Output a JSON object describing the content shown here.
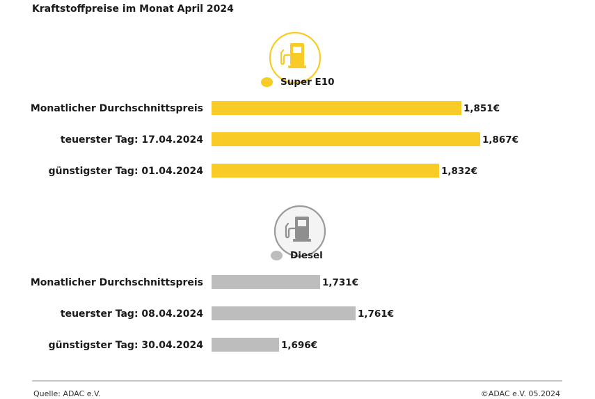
{
  "title": "Kraftstoffpreise im Monat April 2024",
  "chart_data": [
    {
      "type": "bar",
      "orientation": "horizontal",
      "series_name": "Super E10",
      "color": "#f9cb26",
      "icon": "fuel-pump-icon",
      "categories": [
        "Monatlicher Durchschnittspreis",
        "teuerster Tag: 17.04.2024",
        "günstigster Tag: 01.04.2024"
      ],
      "values": [
        1.851,
        1.867,
        1.832
      ],
      "value_labels": [
        "1,851€",
        "1,867€",
        "1,832€"
      ]
    },
    {
      "type": "bar",
      "orientation": "horizontal",
      "series_name": "Diesel",
      "color": "#bdbdbd",
      "icon": "fuel-pump-icon",
      "categories": [
        "Monatlicher Durchschnittspreis",
        "teuerster Tag: 08.04.2024",
        "günstigster Tag: 30.04.2024"
      ],
      "values": [
        1.731,
        1.761,
        1.696
      ],
      "value_labels": [
        "1,731€",
        "1,761€",
        "1,696€"
      ]
    }
  ],
  "footer": {
    "source": "Quelle: ADAC e.V.",
    "copyright": "©ADAC e.V. 05.2024"
  }
}
